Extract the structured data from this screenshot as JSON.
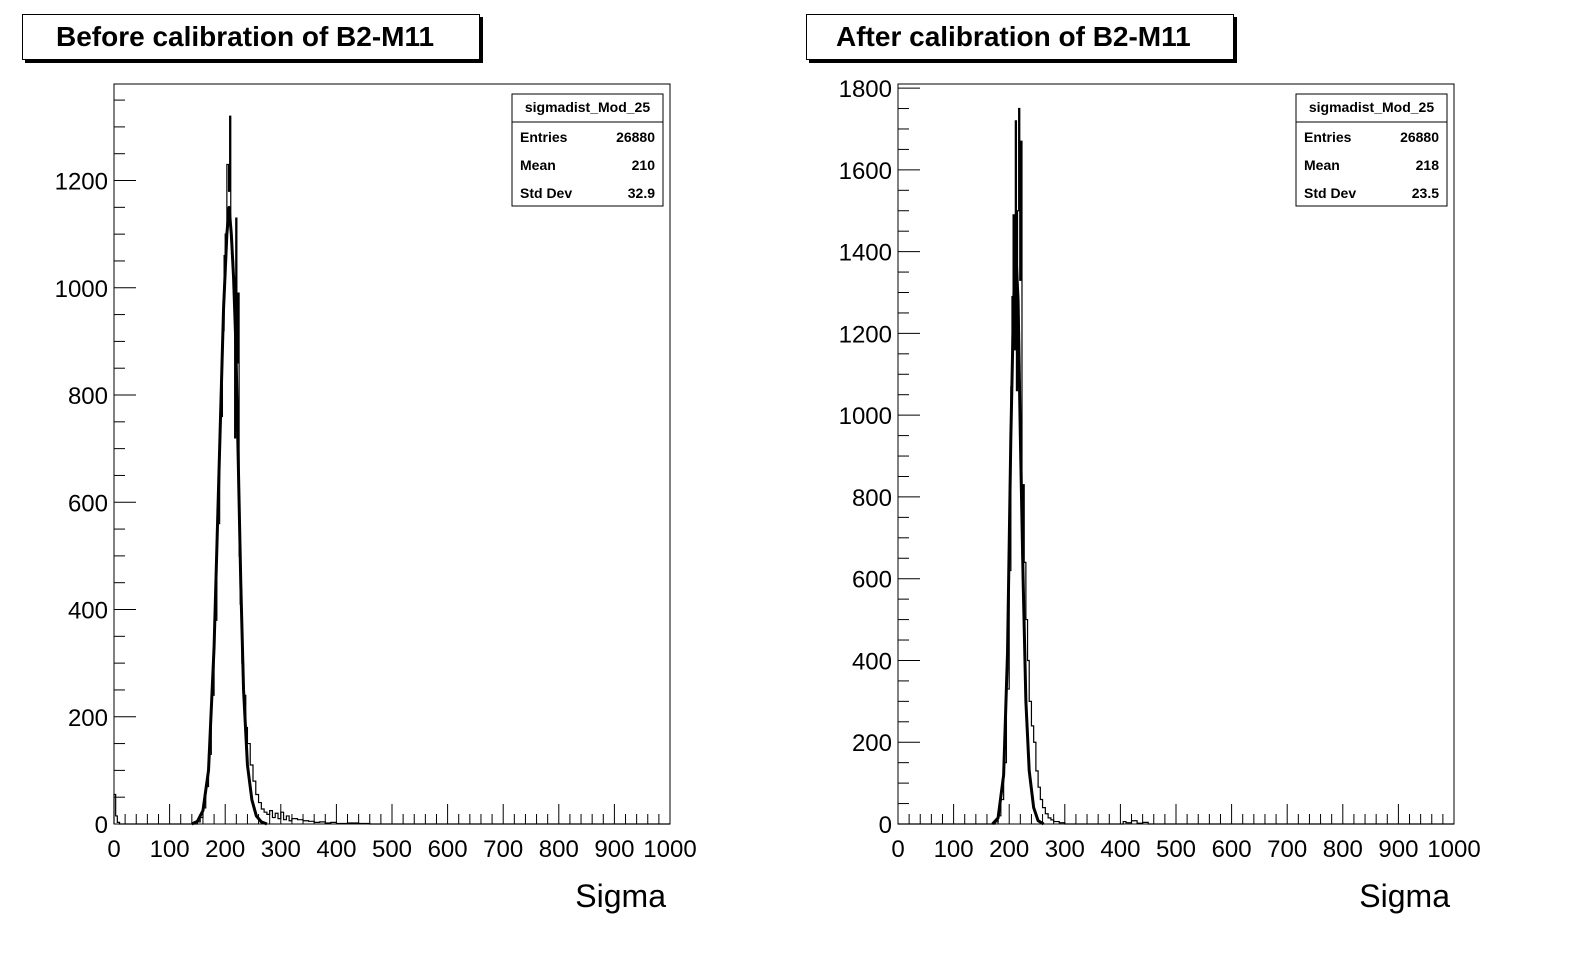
{
  "chart_data": [
    {
      "type": "histogram",
      "title": "Before calibration of B2-M11",
      "xlabel": "Sigma",
      "ylabel": "",
      "xlim": [
        0,
        1000
      ],
      "ylim": [
        0,
        1380
      ],
      "x_ticks": [
        "0",
        "100",
        "200",
        "300",
        "400",
        "500",
        "600",
        "700",
        "800",
        "900",
        "1000"
      ],
      "y_ticks": [
        "0",
        "200",
        "400",
        "600",
        "800",
        "1000",
        "1200"
      ],
      "stats": {
        "name": "sigmadist_Mod_25",
        "rows": [
          {
            "label": "Entries",
            "value": "26880"
          },
          {
            "label": "Mean",
            "value": "210"
          },
          {
            "label": "Std Dev",
            "value": "32.9"
          }
        ]
      },
      "series": [
        {
          "style": "thin-histogram",
          "points": [
            {
              "x": 0,
              "y": 55
            },
            {
              "x": 3,
              "y": 15
            },
            {
              "x": 6,
              "y": 3
            },
            {
              "x": 10,
              "y": 0
            },
            {
              "x": 145,
              "y": 0
            },
            {
              "x": 150,
              "y": 4
            },
            {
              "x": 155,
              "y": 12
            },
            {
              "x": 160,
              "y": 30
            },
            {
              "x": 165,
              "y": 70
            },
            {
              "x": 170,
              "y": 130
            },
            {
              "x": 175,
              "y": 240
            },
            {
              "x": 180,
              "y": 380
            },
            {
              "x": 185,
              "y": 560
            },
            {
              "x": 190,
              "y": 760
            },
            {
              "x": 195,
              "y": 920
            },
            {
              "x": 198,
              "y": 1060
            },
            {
              "x": 200,
              "y": 1100
            },
            {
              "x": 203,
              "y": 1230
            },
            {
              "x": 206,
              "y": 1180
            },
            {
              "x": 208,
              "y": 1320
            },
            {
              "x": 210,
              "y": 1090
            },
            {
              "x": 213,
              "y": 1050
            },
            {
              "x": 215,
              "y": 1020
            },
            {
              "x": 217,
              "y": 720
            },
            {
              "x": 219,
              "y": 1130
            },
            {
              "x": 221,
              "y": 860
            },
            {
              "x": 223,
              "y": 990
            },
            {
              "x": 225,
              "y": 500
            },
            {
              "x": 227,
              "y": 410
            },
            {
              "x": 230,
              "y": 300
            },
            {
              "x": 233,
              "y": 240
            },
            {
              "x": 237,
              "y": 180
            },
            {
              "x": 240,
              "y": 150
            },
            {
              "x": 245,
              "y": 110
            },
            {
              "x": 250,
              "y": 80
            },
            {
              "x": 255,
              "y": 55
            },
            {
              "x": 260,
              "y": 40
            },
            {
              "x": 265,
              "y": 28
            },
            {
              "x": 270,
              "y": 22
            },
            {
              "x": 275,
              "y": 18
            },
            {
              "x": 280,
              "y": 25
            },
            {
              "x": 285,
              "y": 12
            },
            {
              "x": 290,
              "y": 20
            },
            {
              "x": 295,
              "y": 10
            },
            {
              "x": 300,
              "y": 22
            },
            {
              "x": 305,
              "y": 8
            },
            {
              "x": 310,
              "y": 15
            },
            {
              "x": 315,
              "y": 6
            },
            {
              "x": 320,
              "y": 10
            },
            {
              "x": 330,
              "y": 8
            },
            {
              "x": 340,
              "y": 6
            },
            {
              "x": 350,
              "y": 5
            },
            {
              "x": 360,
              "y": 3
            },
            {
              "x": 370,
              "y": 4
            },
            {
              "x": 380,
              "y": 2
            },
            {
              "x": 390,
              "y": 3
            },
            {
              "x": 400,
              "y": 1
            },
            {
              "x": 420,
              "y": 2
            },
            {
              "x": 440,
              "y": 1
            },
            {
              "x": 460,
              "y": 0
            },
            {
              "x": 1000,
              "y": 0
            }
          ]
        },
        {
          "style": "thick-smooth",
          "points": [
            {
              "x": 140,
              "y": 0
            },
            {
              "x": 150,
              "y": 5
            },
            {
              "x": 160,
              "y": 25
            },
            {
              "x": 170,
              "y": 100
            },
            {
              "x": 180,
              "y": 330
            },
            {
              "x": 190,
              "y": 700
            },
            {
              "x": 197,
              "y": 960
            },
            {
              "x": 203,
              "y": 1100
            },
            {
              "x": 207,
              "y": 1150
            },
            {
              "x": 211,
              "y": 1100
            },
            {
              "x": 215,
              "y": 1020
            },
            {
              "x": 219,
              "y": 900
            },
            {
              "x": 223,
              "y": 700
            },
            {
              "x": 228,
              "y": 450
            },
            {
              "x": 233,
              "y": 250
            },
            {
              "x": 240,
              "y": 110
            },
            {
              "x": 248,
              "y": 45
            },
            {
              "x": 256,
              "y": 15
            },
            {
              "x": 265,
              "y": 4
            },
            {
              "x": 275,
              "y": 0
            }
          ]
        }
      ]
    },
    {
      "type": "histogram",
      "title": "After calibration of B2-M11",
      "xlabel": "Sigma",
      "ylabel": "",
      "xlim": [
        0,
        1000
      ],
      "ylim": [
        0,
        1810
      ],
      "x_ticks": [
        "0",
        "100",
        "200",
        "300",
        "400",
        "500",
        "600",
        "700",
        "800",
        "900",
        "1000"
      ],
      "y_ticks": [
        "0",
        "200",
        "400",
        "600",
        "800",
        "1000",
        "1200",
        "1400",
        "1600",
        "1800"
      ],
      "stats": {
        "name": "sigmadist_Mod_25",
        "rows": [
          {
            "label": "Entries",
            "value": "26880"
          },
          {
            "label": "Mean",
            "value": "218"
          },
          {
            "label": "Std Dev",
            "value": "23.5"
          }
        ]
      },
      "series": [
        {
          "style": "thin-histogram",
          "points": [
            {
              "x": 0,
              "y": 0
            },
            {
              "x": 170,
              "y": 0
            },
            {
              "x": 175,
              "y": 5
            },
            {
              "x": 180,
              "y": 20
            },
            {
              "x": 185,
              "y": 60
            },
            {
              "x": 190,
              "y": 150
            },
            {
              "x": 195,
              "y": 330
            },
            {
              "x": 200,
              "y": 620
            },
            {
              "x": 203,
              "y": 1070
            },
            {
              "x": 205,
              "y": 1290
            },
            {
              "x": 207,
              "y": 1490
            },
            {
              "x": 209,
              "y": 1160
            },
            {
              "x": 211,
              "y": 1720
            },
            {
              "x": 213,
              "y": 1060
            },
            {
              "x": 215,
              "y": 1500
            },
            {
              "x": 217,
              "y": 1750
            },
            {
              "x": 219,
              "y": 1330
            },
            {
              "x": 221,
              "y": 1670
            },
            {
              "x": 223,
              "y": 650
            },
            {
              "x": 225,
              "y": 830
            },
            {
              "x": 227,
              "y": 640
            },
            {
              "x": 230,
              "y": 500
            },
            {
              "x": 233,
              "y": 400
            },
            {
              "x": 236,
              "y": 300
            },
            {
              "x": 240,
              "y": 240
            },
            {
              "x": 244,
              "y": 200
            },
            {
              "x": 248,
              "y": 130
            },
            {
              "x": 252,
              "y": 90
            },
            {
              "x": 256,
              "y": 60
            },
            {
              "x": 260,
              "y": 40
            },
            {
              "x": 265,
              "y": 25
            },
            {
              "x": 270,
              "y": 15
            },
            {
              "x": 275,
              "y": 10
            },
            {
              "x": 280,
              "y": 6
            },
            {
              "x": 290,
              "y": 3
            },
            {
              "x": 300,
              "y": 0
            },
            {
              "x": 400,
              "y": 0
            },
            {
              "x": 405,
              "y": 6
            },
            {
              "x": 410,
              "y": 3
            },
            {
              "x": 420,
              "y": 8
            },
            {
              "x": 430,
              "y": 2
            },
            {
              "x": 440,
              "y": 4
            },
            {
              "x": 450,
              "y": 0
            },
            {
              "x": 1000,
              "y": 0
            }
          ]
        },
        {
          "style": "thick-smooth",
          "points": [
            {
              "x": 170,
              "y": 0
            },
            {
              "x": 180,
              "y": 15
            },
            {
              "x": 190,
              "y": 120
            },
            {
              "x": 197,
              "y": 420
            },
            {
              "x": 203,
              "y": 950
            },
            {
              "x": 208,
              "y": 1280
            },
            {
              "x": 212,
              "y": 1400
            },
            {
              "x": 216,
              "y": 1280
            },
            {
              "x": 220,
              "y": 950
            },
            {
              "x": 225,
              "y": 600
            },
            {
              "x": 230,
              "y": 300
            },
            {
              "x": 236,
              "y": 130
            },
            {
              "x": 244,
              "y": 40
            },
            {
              "x": 252,
              "y": 8
            },
            {
              "x": 262,
              "y": 0
            }
          ]
        }
      ]
    }
  ]
}
